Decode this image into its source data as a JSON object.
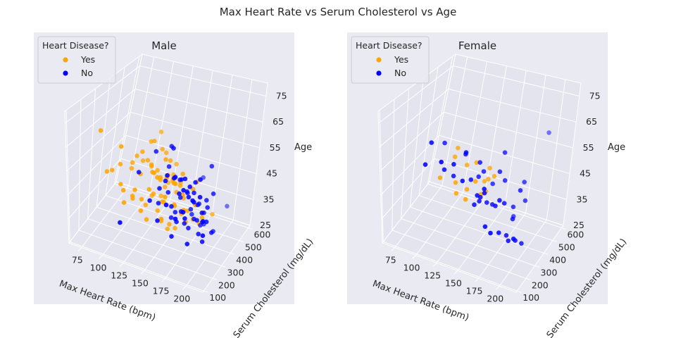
{
  "figure": {
    "title": "Max Heart Rate vs Serum Cholesterol vs Age",
    "colors": {
      "yes": "#ffa500",
      "no": "#0000ff",
      "pane": "#eaeaf2",
      "grid": "#ffffff"
    }
  },
  "chart_data": [
    {
      "type": "scatter",
      "subtitle": "Male",
      "legend": {
        "title": "Heart Disease?",
        "placement": "top-left",
        "entries": [
          "Yes",
          "No"
        ]
      },
      "xlabel": "Max Heart Rate (bpm)",
      "ylabel": "Serum Cholesterol (mg/dL)",
      "zlabel": "Age",
      "xlim": [
        60,
        220
      ],
      "ylim": [
        90,
        620
      ],
      "zlim": [
        25,
        80
      ],
      "xticks": [
        "75",
        "100",
        "125",
        "150",
        "175",
        "200"
      ],
      "yticks": [
        "100",
        "200",
        "300",
        "400",
        "500",
        "600"
      ],
      "zticks": [
        "25",
        "35",
        "45",
        "55",
        "65",
        "75"
      ],
      "grid": true,
      "series": [
        {
          "name": "Yes",
          "color": "#ffa500",
          "points": [
            [
              83,
              204,
              70
            ],
            [
              88,
              230,
              52
            ],
            [
              95,
              221,
              54
            ],
            [
              99,
              262,
              55
            ],
            [
              103,
              242,
              48
            ],
            [
              106,
              212,
              66
            ],
            [
              109,
              290,
              53
            ],
            [
              112,
              196,
              49
            ],
            [
              114,
              255,
              58
            ],
            [
              116,
              276,
              60
            ],
            [
              118,
              240,
              44
            ],
            [
              120,
              303,
              57
            ],
            [
              121,
              211,
              47
            ],
            [
              123,
              270,
              63
            ],
            [
              125,
              247,
              55
            ],
            [
              126,
              319,
              65
            ],
            [
              127,
              183,
              52
            ],
            [
              128,
              288,
              40
            ],
            [
              130,
              226,
              46
            ],
            [
              131,
              260,
              61
            ],
            [
              132,
              301,
              67
            ],
            [
              133,
              197,
              43
            ],
            [
              134,
              274,
              58
            ],
            [
              136,
              245,
              50
            ],
            [
              137,
              340,
              62
            ],
            [
              138,
              214,
              39
            ],
            [
              139,
              291,
              56
            ],
            [
              140,
              256,
              48
            ],
            [
              141,
              229,
              59
            ],
            [
              142,
              318,
              44
            ],
            [
              143,
              202,
              64
            ],
            [
              144,
              283,
              53
            ],
            [
              145,
              264,
              41
            ],
            [
              146,
              236,
              57
            ],
            [
              147,
              307,
              49
            ],
            [
              148,
              188,
              62
            ],
            [
              149,
              271,
              45
            ],
            [
              150,
              293,
              54
            ],
            [
              151,
              252,
              38
            ],
            [
              152,
              216,
              59
            ],
            [
              153,
              330,
              51
            ],
            [
              154,
              243,
              47
            ],
            [
              155,
              278,
              63
            ],
            [
              156,
              207,
              42
            ],
            [
              157,
              299,
              56
            ],
            [
              158,
              261,
              35
            ],
            [
              159,
              232,
              60
            ],
            [
              160,
              315,
              48
            ],
            [
              161,
              194,
              53
            ],
            [
              162,
              286,
              44
            ],
            [
              163,
              249,
              58
            ],
            [
              164,
              222,
              40
            ],
            [
              165,
              305,
              52
            ],
            [
              166,
              268,
              36
            ],
            [
              167,
              238,
              57
            ],
            [
              168,
              322,
              46
            ],
            [
              170,
              210,
              50
            ],
            [
              171,
              282,
              42
            ],
            [
              173,
              255,
              61
            ],
            [
              175,
              298,
              38
            ],
            [
              177,
              231,
              54
            ],
            [
              179,
              270,
              45
            ],
            [
              181,
              212,
              49
            ],
            [
              184,
              289,
              41
            ],
            [
              187,
              245,
              57
            ],
            [
              190,
              305,
              39
            ],
            [
              193,
              226,
              52
            ],
            [
              196,
              275,
              44
            ],
            [
              199,
              250,
              48
            ],
            [
              202,
              330,
              43
            ],
            [
              125,
              410,
              64
            ],
            [
              140,
              355,
              60
            ],
            [
              150,
              380,
              55
            ],
            [
              160,
              350,
              50
            ],
            [
              115,
              180,
              45
            ],
            [
              170,
              200,
              60
            ],
            [
              130,
              330,
              42
            ],
            [
              145,
              355,
              48
            ],
            [
              178,
              360,
              52
            ],
            [
              155,
              235,
              66
            ]
          ]
        },
        {
          "name": "No",
          "color": "#0000ff",
          "points": [
            [
              111,
              178,
              36
            ],
            [
              122,
              254,
              55
            ],
            [
              135,
              300,
              63
            ],
            [
              140,
              222,
              47
            ],
            [
              145,
              268,
              44
            ],
            [
              148,
              245,
              52
            ],
            [
              150,
              309,
              58
            ],
            [
              152,
              203,
              41
            ],
            [
              154,
              282,
              49
            ],
            [
              156,
              233,
              57
            ],
            [
              158,
              295,
              38
            ],
            [
              160,
              215,
              61
            ],
            [
              161,
              262,
              45
            ],
            [
              162,
              324,
              53
            ],
            [
              163,
              191,
              50
            ],
            [
              164,
              279,
              42
            ],
            [
              165,
              240,
              59
            ],
            [
              166,
              306,
              47
            ],
            [
              167,
              224,
              35
            ],
            [
              168,
              288,
              56
            ],
            [
              169,
              252,
              40
            ],
            [
              170,
              210,
              62
            ],
            [
              171,
              333,
              48
            ],
            [
              172,
              267,
              44
            ],
            [
              173,
              230,
              54
            ],
            [
              174,
              298,
              51
            ],
            [
              175,
              184,
              46
            ],
            [
              176,
              274,
              39
            ],
            [
              177,
              246,
              60
            ],
            [
              178,
              315,
              43
            ],
            [
              179,
              219,
              57
            ],
            [
              180,
              283,
              37
            ],
            [
              181,
              257,
              52
            ],
            [
              182,
              200,
              49
            ],
            [
              183,
              341,
              44
            ],
            [
              184,
              238,
              58
            ],
            [
              185,
              292,
              41
            ],
            [
              186,
              265,
              54
            ],
            [
              187,
              212,
              35
            ],
            [
              188,
              308,
              47
            ],
            [
              189,
              248,
              60
            ],
            [
              190,
              277,
              42
            ],
            [
              191,
              226,
              53
            ],
            [
              192,
              320,
              39
            ],
            [
              193,
              194,
              56
            ],
            [
              194,
              289,
              45
            ],
            [
              195,
              255,
              38
            ],
            [
              196,
              235,
              63
            ],
            [
              197,
              302,
              50
            ],
            [
              198,
              270,
              43
            ],
            [
              199,
              215,
              57
            ],
            [
              200,
              290,
              48
            ],
            [
              201,
              245,
              36
            ],
            [
              202,
              325,
              52
            ],
            [
              203,
              260,
              44
            ],
            [
              196,
              340,
              62
            ],
            [
              190,
              350,
              41
            ],
            [
              175,
              360,
              38
            ],
            [
              185,
              370,
              34
            ],
            [
              200,
              375,
              33
            ],
            [
              186,
              400,
              33
            ],
            [
              206,
              200,
              42
            ],
            [
              196,
              560,
              33
            ],
            [
              150,
              320,
              66
            ],
            [
              170,
              500,
              45
            ],
            [
              160,
              260,
              70
            ],
            [
              205,
              305,
              37
            ],
            [
              182,
              220,
              45
            ]
          ]
        }
      ]
    },
    {
      "type": "scatter",
      "subtitle": "Female",
      "legend": {
        "title": "Heart Disease?",
        "placement": "top-left",
        "entries": [
          "Yes",
          "No"
        ]
      },
      "xlabel": "Max Heart Rate (bpm)",
      "ylabel": "Serum Cholesterol (mg/dL)",
      "zlabel": "Age",
      "xlim": [
        60,
        220
      ],
      "ylim": [
        90,
        620
      ],
      "zlim": [
        25,
        80
      ],
      "xticks": [
        "75",
        "100",
        "125",
        "150",
        "175",
        "200"
      ],
      "yticks": [
        "100",
        "200",
        "300",
        "400",
        "500",
        "600"
      ],
      "zticks": [
        "25",
        "35",
        "45",
        "55",
        "65",
        "75"
      ],
      "grid": true,
      "series": [
        {
          "name": "Yes",
          "color": "#ffa500",
          "points": [
            [
              114,
              208,
              54
            ],
            [
              121,
              280,
              60
            ],
            [
              128,
              242,
              52
            ],
            [
              130,
              236,
              48
            ],
            [
              133,
              300,
              57
            ],
            [
              140,
              255,
              50
            ],
            [
              143,
              220,
              48
            ],
            [
              145,
              292,
              60
            ],
            [
              150,
              250,
              55
            ],
            [
              155,
              270,
              49
            ],
            [
              158,
              315,
              58
            ],
            [
              160,
              290,
              55
            ],
            [
              162,
              256,
              52
            ],
            [
              165,
              305,
              56
            ],
            [
              120,
              310,
              62
            ],
            [
              150,
              340,
              50
            ]
          ]
        },
        {
          "name": "No",
          "color": "#0000ff",
          "points": [
            [
              96,
              211,
              57
            ],
            [
              100,
              228,
              66
            ],
            [
              104,
              312,
              62
            ],
            [
              113,
              252,
              55
            ],
            [
              117,
              192,
              62
            ],
            [
              121,
              277,
              52
            ],
            [
              126,
              234,
              60
            ],
            [
              132,
              290,
              62
            ],
            [
              138,
              247,
              66
            ],
            [
              143,
              264,
              54
            ],
            [
              146,
              312,
              53
            ],
            [
              148,
              300,
              60
            ],
            [
              150,
              325,
              55
            ],
            [
              152,
              282,
              45
            ],
            [
              154,
              241,
              50
            ],
            [
              155,
              265,
              48
            ],
            [
              158,
              356,
              49
            ],
            [
              160,
              290,
              45
            ],
            [
              162,
              243,
              52
            ],
            [
              165,
              305,
              44
            ],
            [
              168,
              213,
              40
            ],
            [
              170,
              315,
              58
            ],
            [
              172,
              274,
              46
            ],
            [
              175,
              330,
              54
            ],
            [
              178,
              260,
              50
            ],
            [
              180,
              294,
              47
            ],
            [
              182,
              234,
              38
            ],
            [
              185,
              348,
              43
            ],
            [
              188,
              263,
              36
            ],
            [
              190,
              303,
              41
            ],
            [
              192,
              249,
              35
            ],
            [
              195,
              318,
              53
            ],
            [
              197,
              280,
              34
            ],
            [
              200,
              230,
              38
            ],
            [
              190,
              400,
              51
            ],
            [
              180,
              410,
              35
            ],
            [
              195,
              380,
              45
            ],
            [
              170,
              350,
              64
            ],
            [
              162,
              239,
              54
            ],
            [
              195,
              564,
              62
            ],
            [
              176,
              200,
              39
            ],
            [
              202,
              305,
              32
            ],
            [
              138,
              225,
              55
            ],
            [
              150,
              250,
              45
            ]
          ]
        }
      ]
    }
  ]
}
